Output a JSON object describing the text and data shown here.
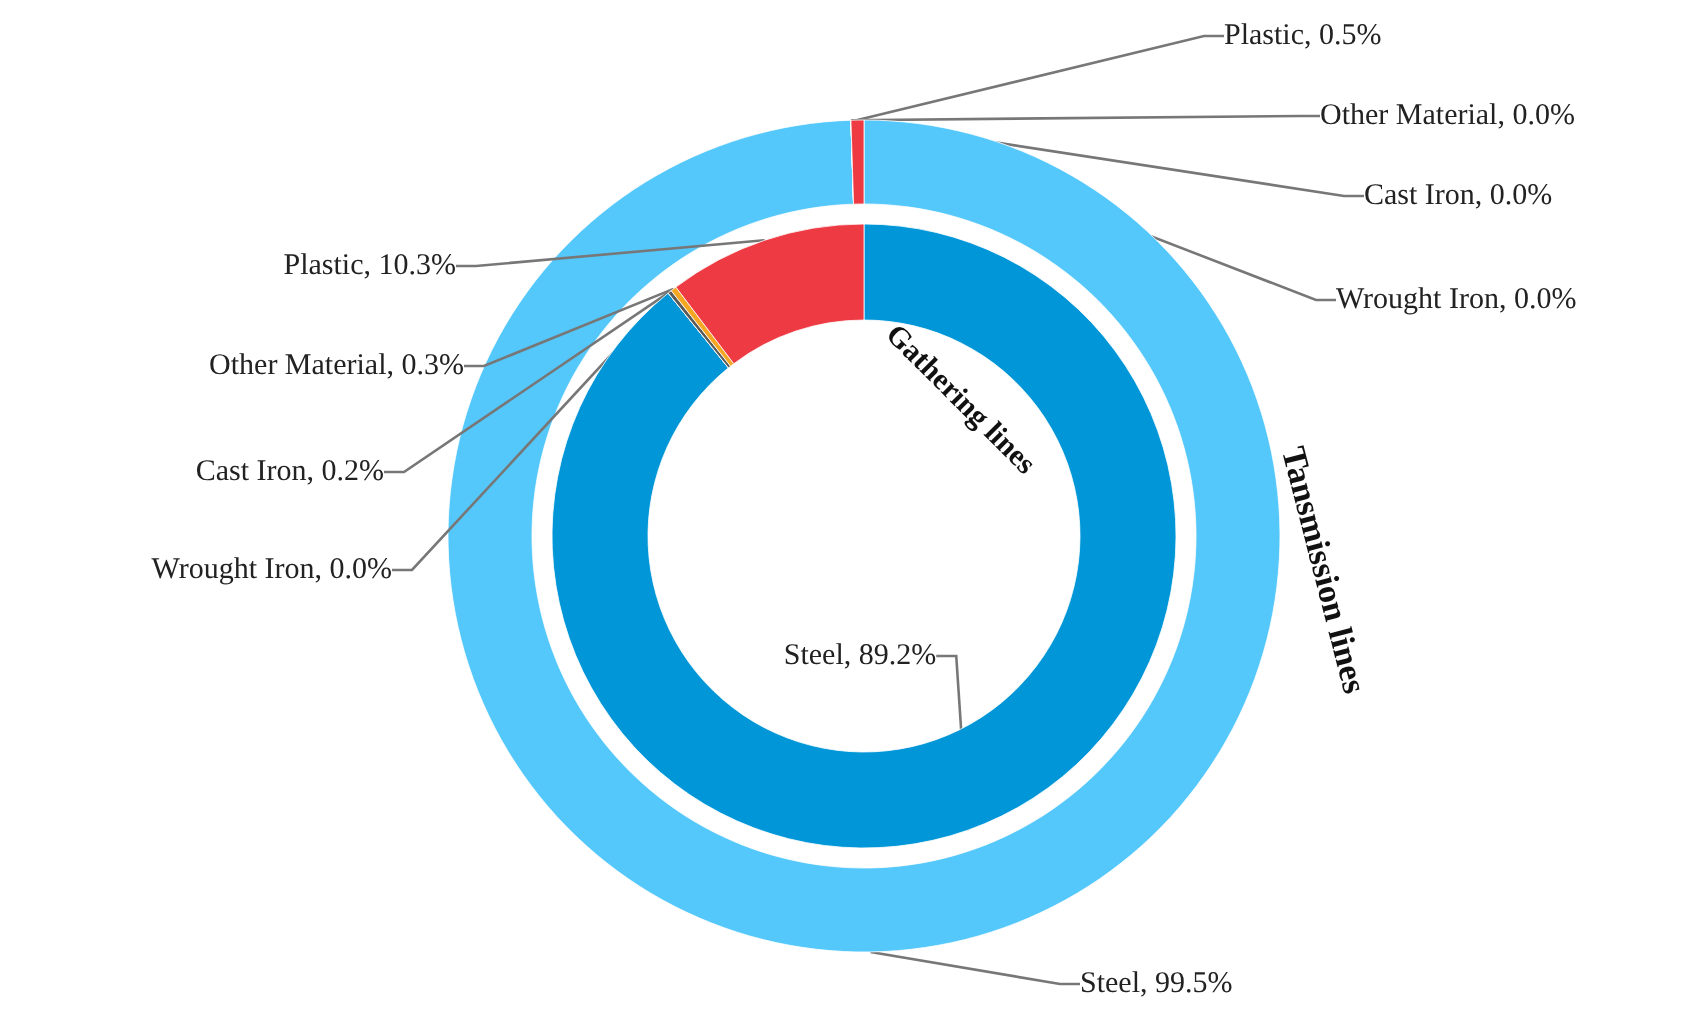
{
  "chart_data": [
    {
      "type": "donut",
      "title": "Tansmission lines",
      "categories": [
        "Steel",
        "Wrought Iron",
        "Cast Iron",
        "Other Material",
        "Plastic"
      ],
      "values": [
        99.5,
        0.0,
        0.0,
        0.0,
        0.5
      ],
      "colors": [
        "#55c8fb",
        "#8a8a8a",
        "#5a5a5a",
        "#f5a623",
        "#ee3a43"
      ],
      "value_labels": [
        ", 99.5%",
        ", 0.0%",
        ", 0.0%",
        ", 0.0%",
        ", 0.5%"
      ]
    },
    {
      "type": "donut",
      "title": "Gathering lines",
      "categories": [
        "Steel",
        "Wrought Iron",
        "Cast Iron",
        "Other Material",
        "Plastic"
      ],
      "values": [
        89.2,
        0.0,
        0.2,
        0.3,
        10.3
      ],
      "colors": [
        "#0096d8",
        "#8a8a8a",
        "#5a5a5a",
        "#f5a623",
        "#ee3a43"
      ],
      "value_labels": [
        ", 89.2%",
        ", 0.0%",
        ", 0.2%",
        ", 0.3%",
        ", 10.3%"
      ]
    }
  ]
}
